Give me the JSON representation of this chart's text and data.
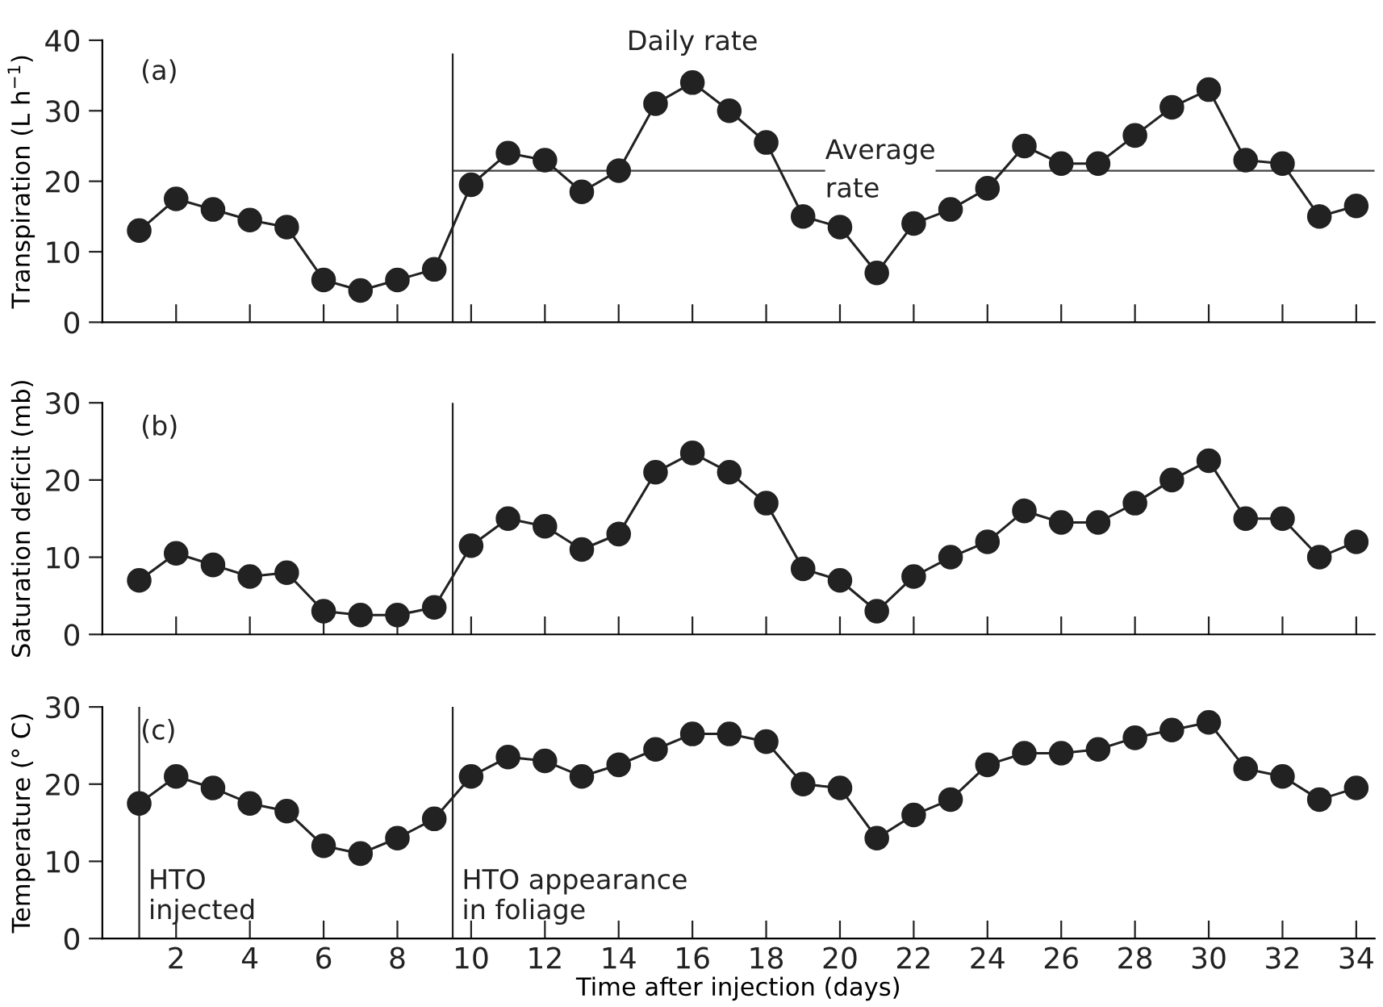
{
  "chart_data": [
    {
      "type": "line",
      "ylabel": "Transpiration (L h$^{−1}$)",
      "x": [
        1,
        2,
        3,
        4,
        5,
        6,
        7,
        8,
        9,
        10,
        11,
        12,
        13,
        14,
        15,
        16,
        17,
        18,
        19,
        20,
        21,
        22,
        23,
        24,
        25,
        26,
        27,
        28,
        29,
        30,
        31,
        32,
        33,
        34
      ],
      "series": [
        {
          "color": "#222222",
          "values": [
            13,
            17.5,
            16,
            14.5,
            13.5,
            6,
            4.5,
            6,
            7.5,
            19.5,
            24,
            23,
            18.5,
            21.5,
            31,
            34,
            30,
            25.5,
            15,
            13.5,
            7,
            14,
            16,
            19,
            25,
            22.5,
            22.5,
            26.5,
            30.5,
            33,
            23,
            22.5,
            15,
            16.5
          ]
        }
      ],
      "xlim": [
        0,
        34.5
      ],
      "xticks": [
        {
          "value": 2,
          "label": null
        },
        {
          "value": 4,
          "label": null
        },
        {
          "value": 6,
          "label": null
        },
        {
          "value": 8,
          "label": null
        },
        {
          "value": 10,
          "label": null
        },
        {
          "value": 12,
          "label": null
        },
        {
          "value": 14,
          "label": null
        },
        {
          "value": 16,
          "label": null
        },
        {
          "value": 18,
          "label": null
        },
        {
          "value": 20,
          "label": null
        },
        {
          "value": 22,
          "label": null
        },
        {
          "value": 24,
          "label": null
        },
        {
          "value": 26,
          "label": null
        },
        {
          "value": 28,
          "label": null
        },
        {
          "value": 30,
          "label": null
        },
        {
          "value": 32,
          "label": null
        },
        {
          "value": 34,
          "label": null
        }
      ],
      "ylim": [
        0,
        40
      ],
      "yticks": [
        0,
        10,
        20,
        30,
        40
      ],
      "tick_labels": "y",
      "marker": "circle",
      "line_style": "solid",
      "grid": false,
      "legend": false,
      "ref_lines": [
        {
          "axis": "x",
          "value": 9.5,
          "color": "#222222"
        },
        {
          "axis": "y",
          "value": 21.5,
          "label": "Average\nrate",
          "color": "#444444"
        }
      ],
      "annotations": [
        "(a)",
        {
          "text": "Daily rate",
          "x": 16,
          "y": 34
        }
      ]
    },
    {
      "type": "line",
      "ylabel": "Saturation deficit (mb)",
      "x": [
        1,
        2,
        3,
        4,
        5,
        6,
        7,
        8,
        9,
        10,
        11,
        12,
        13,
        14,
        15,
        16,
        17,
        18,
        19,
        20,
        21,
        22,
        23,
        24,
        25,
        26,
        27,
        28,
        29,
        30,
        31,
        32,
        33,
        34
      ],
      "series": [
        {
          "color": "#222222",
          "values": [
            7,
            10.5,
            9,
            7.5,
            8,
            3,
            2.5,
            2.5,
            3.5,
            11.5,
            15,
            14,
            11,
            13,
            21,
            23.5,
            21,
            17,
            8.5,
            7,
            3,
            7.5,
            10,
            12,
            16,
            14.5,
            14.5,
            17,
            20,
            22.5,
            15,
            15,
            10,
            12
          ]
        }
      ],
      "xlim": [
        0,
        34.5
      ],
      "xticks": [
        {
          "value": 2,
          "label": null
        },
        {
          "value": 4,
          "label": null
        },
        {
          "value": 6,
          "label": null
        },
        {
          "value": 8,
          "label": null
        },
        {
          "value": 10,
          "label": null
        },
        {
          "value": 12,
          "label": null
        },
        {
          "value": 14,
          "label": null
        },
        {
          "value": 16,
          "label": null
        },
        {
          "value": 18,
          "label": null
        },
        {
          "value": 20,
          "label": null
        },
        {
          "value": 22,
          "label": null
        },
        {
          "value": 24,
          "label": null
        },
        {
          "value": 26,
          "label": null
        },
        {
          "value": 28,
          "label": null
        },
        {
          "value": 30,
          "label": null
        },
        {
          "value": 32,
          "label": null
        },
        {
          "value": 34,
          "label": null
        }
      ],
      "ylim": [
        0,
        30
      ],
      "yticks": [
        0,
        10,
        20,
        30
      ],
      "tick_labels": "y",
      "marker": "circle",
      "line_style": "solid",
      "grid": false,
      "legend": false,
      "ref_lines": [
        {
          "axis": "x",
          "value": 9.5,
          "color": "#222222"
        }
      ],
      "annotations": [
        "(b)"
      ]
    },
    {
      "type": "line",
      "ylabel": "Temperature (° C)",
      "xlabel": "Time after injection (days)",
      "x": [
        1,
        2,
        3,
        4,
        5,
        6,
        7,
        8,
        9,
        10,
        11,
        12,
        13,
        14,
        15,
        16,
        17,
        18,
        19,
        20,
        21,
        22,
        23,
        24,
        25,
        26,
        27,
        28,
        29,
        30,
        31,
        32,
        33,
        34
      ],
      "series": [
        {
          "color": "#222222",
          "values": [
            17.5,
            21,
            19.5,
            17.5,
            16.5,
            12,
            11,
            13,
            15.5,
            21,
            23.5,
            23,
            21,
            22.5,
            24.5,
            26.5,
            26.5,
            25.5,
            20,
            19.5,
            13,
            16,
            18,
            22.5,
            24,
            24,
            24.5,
            26,
            27,
            28,
            22,
            21,
            18,
            19.5
          ]
        }
      ],
      "xlim": [
        0,
        34.5
      ],
      "xticks": [
        2,
        4,
        6,
        8,
        10,
        12,
        14,
        16,
        18,
        20,
        22,
        24,
        26,
        28,
        30,
        32,
        34
      ],
      "ylim": [
        0,
        30
      ],
      "yticks": [
        0,
        10,
        20,
        30
      ],
      "marker": "circle",
      "line_style": "solid",
      "grid": false,
      "legend": false,
      "ref_lines": [
        {
          "axis": "x",
          "value": 1,
          "label": "HTO\ninjected",
          "color": "#222222"
        },
        {
          "axis": "x",
          "value": 9.5,
          "label": "HTO appearance\nin foliage",
          "color": "#222222"
        }
      ],
      "annotations": [
        "(c)"
      ]
    }
  ]
}
